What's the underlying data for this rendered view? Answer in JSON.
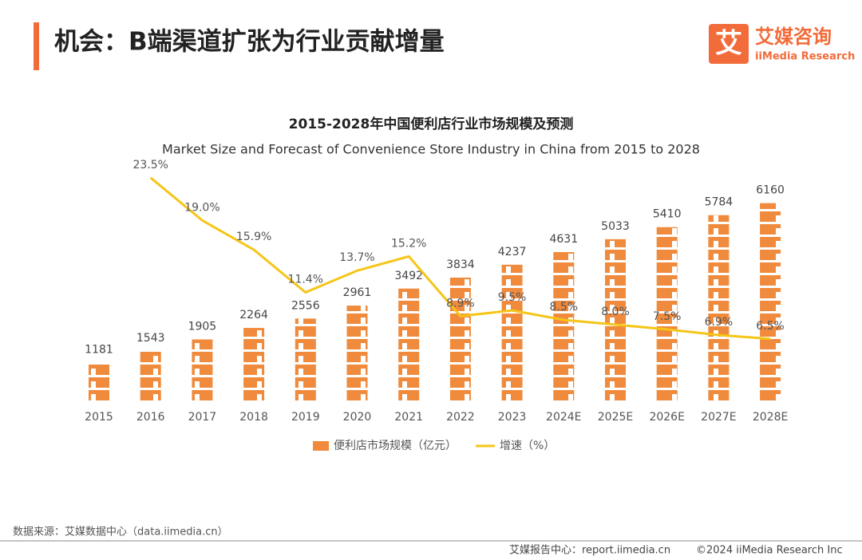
{
  "header": {
    "title": "机会：B端渠道扩张为行业贡献增量"
  },
  "logo": {
    "mark": "艾",
    "name": "艾媒咨询",
    "sub": "iiMedia Research"
  },
  "chart_data": {
    "type": "bar_line",
    "title": "2015-2028年中国便利店行业市场规模及预测",
    "subtitle": "Market Size and Forecast of Convenience Store Industry in China from 2015 to 2028",
    "categories": [
      "2015",
      "2016",
      "2017",
      "2018",
      "2019",
      "2020",
      "2021",
      "2022",
      "2023",
      "2024E",
      "2025E",
      "2026E",
      "2027E",
      "2028E"
    ],
    "ylim": [
      0,
      6200
    ],
    "y2lim": [
      0,
      25
    ],
    "series": [
      {
        "name": "便利店市场规模（亿元）",
        "color": "#f08a3c",
        "values": [
          1181,
          1543,
          1905,
          2264,
          2556,
          2961,
          3492,
          3834,
          4237,
          4631,
          5033,
          5410,
          5784,
          6160
        ]
      },
      {
        "name": "增速（%）",
        "color": "#f5c518",
        "axis": "y2",
        "values": [
          null,
          23.5,
          19.0,
          15.9,
          11.4,
          13.7,
          15.2,
          8.9,
          9.5,
          8.5,
          8.0,
          7.5,
          6.9,
          6.5
        ],
        "value_labels": [
          null,
          "23.5%",
          "19.0%",
          "15.9%",
          "11.4%",
          "13.7%",
          "15.2%",
          "8.9%",
          "9.5%",
          "8.5%",
          "8.0%",
          "7.5%",
          "6.9%",
          "6.5%"
        ]
      }
    ]
  },
  "footer": {
    "source": "数据来源：艾媒数据中心（data.iimedia.cn）",
    "report": "艾媒报告中心：report.iimedia.cn",
    "copyright": "©2024  iiMedia Research  Inc"
  }
}
